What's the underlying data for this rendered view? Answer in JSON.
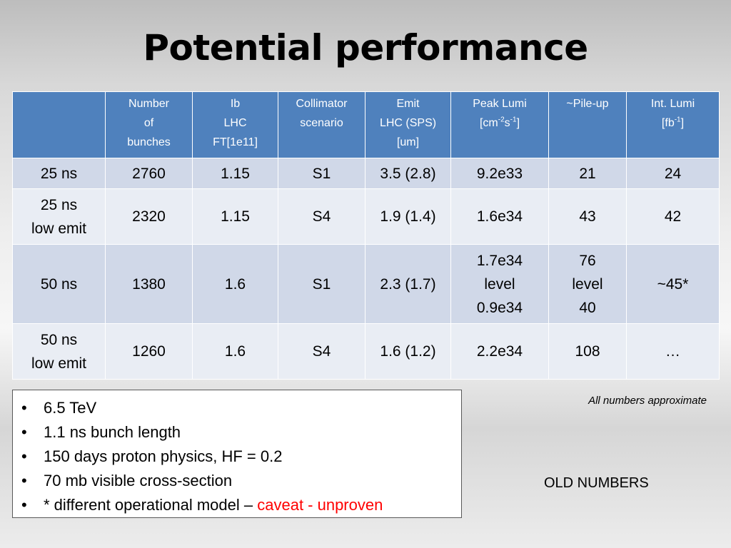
{
  "title": "Potential performance",
  "table": {
    "headers": [
      [
        ""
      ],
      [
        "Number",
        "of",
        "bunches"
      ],
      [
        "Ib",
        "LHC",
        "FT[1e11]"
      ],
      [
        "Collimator",
        "scenario"
      ],
      [
        "Emit",
        "LHC (SPS)",
        "[um]"
      ],
      [
        "Peak Lumi",
        "[cm-2s-1]"
      ],
      [
        "~Pile-up"
      ],
      [
        "Int. Lumi",
        "[fb-1]"
      ]
    ],
    "rows": [
      [
        [
          "25 ns"
        ],
        [
          "2760"
        ],
        [
          "1.15"
        ],
        [
          "S1"
        ],
        [
          "3.5 (2.8)"
        ],
        [
          "9.2e33"
        ],
        [
          "21"
        ],
        [
          "24"
        ]
      ],
      [
        [
          "25 ns",
          "low emit"
        ],
        [
          "2320"
        ],
        [
          "1.15"
        ],
        [
          "S4"
        ],
        [
          "1.9 (1.4)"
        ],
        [
          "1.6e34"
        ],
        [
          "43"
        ],
        [
          "42"
        ]
      ],
      [
        [
          "50 ns"
        ],
        [
          "1380"
        ],
        [
          "1.6"
        ],
        [
          "S1"
        ],
        [
          "2.3 (1.7)"
        ],
        [
          "1.7e34",
          "level",
          "0.9e34"
        ],
        [
          "76",
          "level",
          "40"
        ],
        [
          "~45*"
        ]
      ],
      [
        [
          "50 ns",
          "low emit"
        ],
        [
          "1260"
        ],
        [
          "1.6"
        ],
        [
          "S4"
        ],
        [
          "1.6 (1.2)"
        ],
        [
          "2.2e34"
        ],
        [
          "108"
        ],
        [
          "…"
        ]
      ]
    ]
  },
  "notes": {
    "bullet_symbol": "•",
    "items": [
      "6.5 TeV",
      "1.1 ns bunch length",
      "150 days proton physics, HF = 0.2",
      "70 mb visible cross-section"
    ],
    "last_item": {
      "text": "* different operational model – ",
      "caveat": "caveat - unproven",
      "caveat_color": "#ff0000"
    }
  },
  "approx_note": "All numbers approximate",
  "old_numbers": "OLD NUMBERS",
  "colors": {
    "header_bg": "#4f81bd",
    "row_odd_bg": "#d0d8e8",
    "row_even_bg": "#e9edf4"
  }
}
